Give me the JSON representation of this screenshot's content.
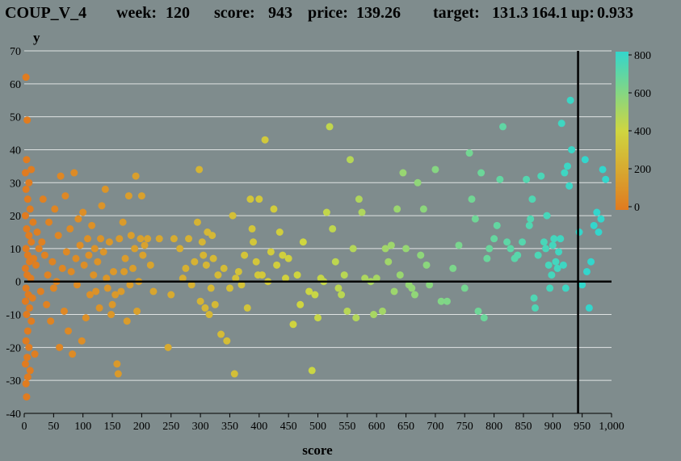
{
  "header": {
    "symbol": "COUP_V_4",
    "week_label": "week:",
    "week_value": "120",
    "score_label": "score:",
    "score_value": "943",
    "price_label": "price:",
    "price_value": "139.26",
    "target_label": "target:",
    "target_low": "131.3",
    "target_high": "164.1",
    "up_label": "up:",
    "up_value": "0.933"
  },
  "chart_data": {
    "type": "scatter",
    "xlabel": "score",
    "ylabel": "y",
    "xlim": [
      0,
      1000
    ],
    "ylim": [
      -40,
      70
    ],
    "x_ticks": [
      0,
      50,
      100,
      150,
      200,
      250,
      300,
      350,
      400,
      450,
      500,
      550,
      600,
      650,
      700,
      750,
      800,
      850,
      900,
      950,
      1000
    ],
    "x_tick_labels": [
      "0",
      "50",
      "100",
      "150",
      "200",
      "250",
      "300",
      "350",
      "400",
      "450",
      "500",
      "550",
      "600",
      "650",
      "700",
      "750",
      "800",
      "850",
      "900",
      "950",
      "1,000"
    ],
    "y_ticks": [
      -40,
      -30,
      -20,
      -10,
      0,
      10,
      20,
      30,
      40,
      50,
      60,
      70
    ],
    "grid": "horizontal",
    "reference_lines": {
      "y": 0,
      "x": 943
    },
    "colorbar": {
      "min": 0,
      "max": 800,
      "ticks": [
        0,
        200,
        400,
        600,
        800
      ],
      "colors": [
        "#e07b20",
        "#cfd640",
        "#33d6cc"
      ],
      "placement": "top-right"
    },
    "points": [
      [
        3,
        62
      ],
      [
        5,
        49
      ],
      [
        4,
        37
      ],
      [
        2,
        33
      ],
      [
        8,
        30
      ],
      [
        12,
        34
      ],
      [
        3,
        28
      ],
      [
        6,
        25
      ],
      [
        10,
        22
      ],
      [
        2,
        20
      ],
      [
        15,
        18
      ],
      [
        4,
        16
      ],
      [
        8,
        14
      ],
      [
        12,
        12
      ],
      [
        3,
        10
      ],
      [
        6,
        8
      ],
      [
        9,
        6
      ],
      [
        2,
        4
      ],
      [
        5,
        2
      ],
      [
        11,
        1
      ],
      [
        3,
        -2
      ],
      [
        7,
        -4
      ],
      [
        2,
        -6
      ],
      [
        9,
        -8
      ],
      [
        4,
        -10
      ],
      [
        12,
        -12
      ],
      [
        6,
        -15
      ],
      [
        3,
        -18
      ],
      [
        8,
        -20
      ],
      [
        5,
        -23
      ],
      [
        2,
        -25
      ],
      [
        10,
        -27
      ],
      [
        6,
        -29
      ],
      [
        3,
        -31
      ],
      [
        4,
        -35
      ],
      [
        14,
        -5
      ],
      [
        16,
        7
      ],
      [
        18,
        -22
      ],
      [
        20,
        5
      ],
      [
        22,
        15
      ],
      [
        25,
        10
      ],
      [
        28,
        -3
      ],
      [
        30,
        12
      ],
      [
        32,
        25
      ],
      [
        35,
        8
      ],
      [
        38,
        -7
      ],
      [
        40,
        2
      ],
      [
        42,
        18
      ],
      [
        45,
        -12
      ],
      [
        48,
        6
      ],
      [
        50,
        -2
      ],
      [
        52,
        22
      ],
      [
        55,
        0
      ],
      [
        58,
        14
      ],
      [
        60,
        -20
      ],
      [
        62,
        32
      ],
      [
        65,
        4
      ],
      [
        68,
        -9
      ],
      [
        70,
        26
      ],
      [
        72,
        9
      ],
      [
        75,
        -15
      ],
      [
        78,
        16
      ],
      [
        80,
        3
      ],
      [
        82,
        -22
      ],
      [
        85,
        33
      ],
      [
        88,
        7
      ],
      [
        90,
        -1
      ],
      [
        92,
        19
      ],
      [
        95,
        11
      ],
      [
        98,
        -18
      ],
      [
        100,
        21
      ],
      [
        102,
        5
      ],
      [
        105,
        -11
      ],
      [
        108,
        13
      ],
      [
        110,
        8
      ],
      [
        112,
        -4
      ],
      [
        115,
        17
      ],
      [
        118,
        2
      ],
      [
        120,
        10
      ],
      [
        122,
        -3
      ],
      [
        125,
        6
      ],
      [
        128,
        -8
      ],
      [
        130,
        13
      ],
      [
        132,
        23
      ],
      [
        135,
        9
      ],
      [
        138,
        28
      ],
      [
        140,
        1
      ],
      [
        142,
        -2
      ],
      [
        145,
        12
      ],
      [
        148,
        -10
      ],
      [
        150,
        -7
      ],
      [
        152,
        3
      ],
      [
        155,
        -4
      ],
      [
        158,
        -25
      ],
      [
        160,
        -28
      ],
      [
        162,
        13
      ],
      [
        165,
        -3
      ],
      [
        168,
        18
      ],
      [
        170,
        3
      ],
      [
        172,
        7
      ],
      [
        175,
        -12
      ],
      [
        178,
        26
      ],
      [
        180,
        -1
      ],
      [
        182,
        14
      ],
      [
        185,
        4
      ],
      [
        188,
        10
      ],
      [
        190,
        32
      ],
      [
        192,
        -9
      ],
      [
        195,
        0
      ],
      [
        198,
        13
      ],
      [
        200,
        26
      ],
      [
        202,
        8
      ],
      [
        205,
        11
      ],
      [
        210,
        13
      ],
      [
        215,
        5
      ],
      [
        220,
        -3
      ],
      [
        230,
        13
      ],
      [
        245,
        -20
      ],
      [
        250,
        -4
      ],
      [
        255,
        13
      ],
      [
        265,
        10
      ],
      [
        270,
        1
      ],
      [
        275,
        4
      ],
      [
        280,
        13
      ],
      [
        285,
        -1
      ],
      [
        290,
        6
      ],
      [
        295,
        18
      ],
      [
        298,
        34
      ],
      [
        300,
        -6
      ],
      [
        303,
        12
      ],
      [
        305,
        8
      ],
      [
        308,
        -8
      ],
      [
        310,
        5
      ],
      [
        312,
        15
      ],
      [
        315,
        -10
      ],
      [
        318,
        -2
      ],
      [
        320,
        14
      ],
      [
        322,
        7
      ],
      [
        325,
        -7
      ],
      [
        330,
        2
      ],
      [
        335,
        -16
      ],
      [
        340,
        4
      ],
      [
        345,
        -18
      ],
      [
        350,
        -2
      ],
      [
        355,
        20
      ],
      [
        358,
        -28
      ],
      [
        360,
        1
      ],
      [
        365,
        3
      ],
      [
        370,
        -1
      ],
      [
        375,
        8
      ],
      [
        380,
        -8
      ],
      [
        385,
        25
      ],
      [
        388,
        16
      ],
      [
        390,
        12
      ],
      [
        395,
        6
      ],
      [
        398,
        2
      ],
      [
        400,
        25
      ],
      [
        405,
        2
      ],
      [
        410,
        43
      ],
      [
        415,
        0
      ],
      [
        420,
        9
      ],
      [
        425,
        22
      ],
      [
        430,
        5
      ],
      [
        435,
        15
      ],
      [
        440,
        8
      ],
      [
        445,
        1
      ],
      [
        450,
        7
      ],
      [
        458,
        -13
      ],
      [
        465,
        2
      ],
      [
        470,
        -7
      ],
      [
        475,
        12
      ],
      [
        485,
        -3
      ],
      [
        490,
        -27
      ],
      [
        495,
        -4
      ],
      [
        500,
        -11
      ],
      [
        505,
        1
      ],
      [
        510,
        0
      ],
      [
        515,
        21
      ],
      [
        520,
        47
      ],
      [
        525,
        16
      ],
      [
        530,
        6
      ],
      [
        535,
        -2
      ],
      [
        540,
        -4
      ],
      [
        545,
        2
      ],
      [
        550,
        -9
      ],
      [
        555,
        37
      ],
      [
        560,
        10
      ],
      [
        565,
        -11
      ],
      [
        570,
        25
      ],
      [
        575,
        21
      ],
      [
        580,
        1
      ],
      [
        590,
        0
      ],
      [
        595,
        -10
      ],
      [
        600,
        1
      ],
      [
        610,
        -9
      ],
      [
        615,
        10
      ],
      [
        620,
        6
      ],
      [
        625,
        11
      ],
      [
        630,
        -3
      ],
      [
        635,
        22
      ],
      [
        640,
        2
      ],
      [
        645,
        33
      ],
      [
        650,
        10
      ],
      [
        655,
        -1
      ],
      [
        660,
        -2
      ],
      [
        665,
        -4
      ],
      [
        670,
        30
      ],
      [
        675,
        8
      ],
      [
        680,
        22
      ],
      [
        685,
        5
      ],
      [
        690,
        -1
      ],
      [
        700,
        34
      ],
      [
        710,
        -6
      ],
      [
        720,
        -6
      ],
      [
        730,
        4
      ],
      [
        740,
        11
      ],
      [
        750,
        -2
      ],
      [
        758,
        39
      ],
      [
        762,
        25
      ],
      [
        768,
        19
      ],
      [
        773,
        -9
      ],
      [
        778,
        33
      ],
      [
        783,
        -11
      ],
      [
        788,
        7
      ],
      [
        792,
        10
      ],
      [
        800,
        13
      ],
      [
        805,
        17
      ],
      [
        810,
        31
      ],
      [
        815,
        47
      ],
      [
        822,
        12
      ],
      [
        828,
        10
      ],
      [
        835,
        7
      ],
      [
        840,
        8
      ],
      [
        848,
        12
      ],
      [
        855,
        31
      ],
      [
        860,
        17
      ],
      [
        862,
        19
      ],
      [
        865,
        25
      ],
      [
        868,
        -5
      ],
      [
        870,
        -8
      ],
      [
        875,
        8
      ],
      [
        880,
        32
      ],
      [
        885,
        12
      ],
      [
        888,
        10
      ],
      [
        890,
        20
      ],
      [
        893,
        5
      ],
      [
        895,
        -2
      ],
      [
        898,
        2
      ],
      [
        900,
        11
      ],
      [
        902,
        13
      ],
      [
        905,
        6
      ],
      [
        908,
        4
      ],
      [
        910,
        9
      ],
      [
        913,
        13
      ],
      [
        915,
        48
      ],
      [
        918,
        5
      ],
      [
        920,
        33
      ],
      [
        922,
        -2
      ],
      [
        925,
        35
      ],
      [
        928,
        29
      ],
      [
        930,
        55
      ],
      [
        932,
        40
      ],
      [
        945,
        15
      ],
      [
        950,
        -1
      ],
      [
        955,
        37
      ],
      [
        958,
        3
      ],
      [
        962,
        -8
      ],
      [
        965,
        6
      ],
      [
        970,
        17
      ],
      [
        975,
        21
      ],
      [
        978,
        15
      ],
      [
        982,
        19
      ],
      [
        985,
        34
      ],
      [
        990,
        31
      ]
    ]
  }
}
